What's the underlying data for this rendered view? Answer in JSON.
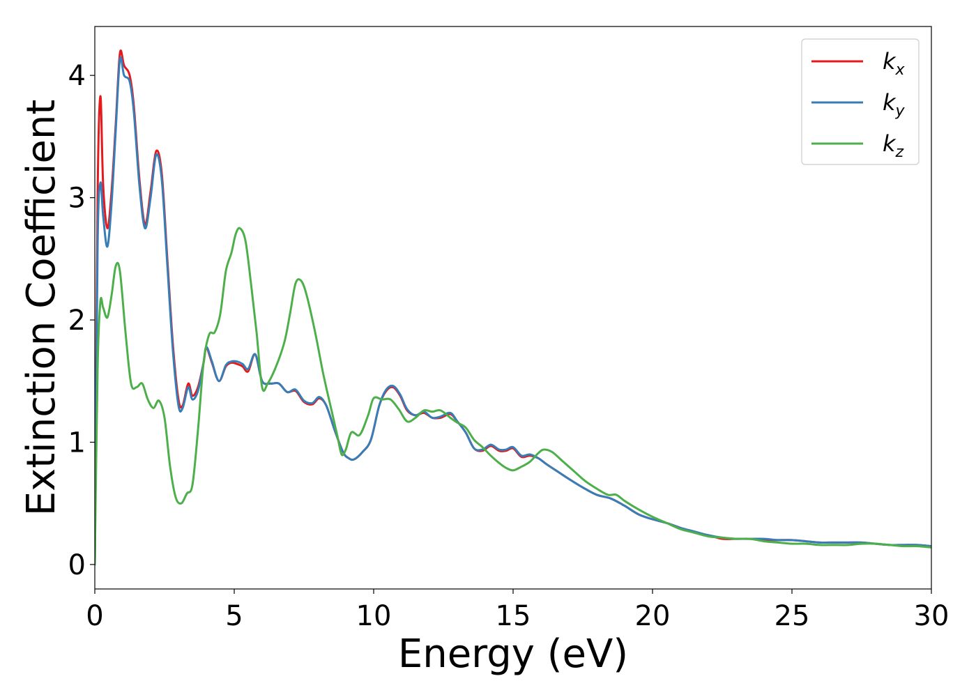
{
  "chart_data": {
    "type": "line",
    "title": "",
    "xlabel": "Energy (eV)",
    "ylabel": "Extinction Coefficient",
    "xlim": [
      0,
      30
    ],
    "ylim": [
      -0.2,
      4.4
    ],
    "xticks": [
      0,
      5,
      10,
      15,
      20,
      25,
      30
    ],
    "yticks": [
      0,
      1,
      2,
      3,
      4
    ],
    "grid": false,
    "legend_position": "top-right",
    "series": [
      {
        "name": "kx",
        "label_base": "k",
        "label_sub": "x",
        "color": "#e41a1c",
        "x": [
          0,
          0.1,
          0.2,
          0.3,
          0.45,
          0.6,
          0.75,
          0.9,
          1.05,
          1.25,
          1.4,
          1.6,
          1.8,
          2.0,
          2.2,
          2.4,
          2.6,
          2.8,
          3.0,
          3.15,
          3.35,
          3.5,
          3.7,
          3.9,
          4.0,
          4.2,
          4.45,
          4.7,
          4.9,
          5.1,
          5.3,
          5.5,
          5.75,
          6.0,
          6.3,
          6.6,
          6.9,
          7.2,
          7.5,
          7.8,
          8.05,
          8.3,
          8.6,
          8.9,
          9.1,
          9.3,
          9.6,
          9.9,
          10.2,
          10.45,
          10.7,
          10.95,
          11.2,
          11.5,
          11.8,
          12.1,
          12.4,
          12.75,
          13.0,
          13.3,
          13.6,
          13.9,
          14.2,
          14.5,
          14.75,
          15.0,
          15.3,
          15.6,
          15.9,
          16.2,
          16.6,
          17.0,
          17.5,
          18.0,
          18.5,
          19.0,
          19.5,
          20.0,
          20.5,
          21.0,
          21.5,
          22.0,
          22.5,
          23.0,
          23.5,
          24.0,
          24.5,
          25.0,
          25.5,
          26.0,
          26.5,
          27.0,
          27.5,
          28.0,
          28.5,
          29.0,
          29.5,
          30.0
        ],
        "values": [
          0.0,
          3.0,
          3.83,
          3.1,
          2.75,
          3.05,
          3.6,
          4.18,
          4.08,
          4.0,
          3.75,
          3.15,
          2.78,
          3.05,
          3.38,
          3.2,
          2.5,
          1.8,
          1.35,
          1.3,
          1.48,
          1.38,
          1.45,
          1.65,
          1.77,
          1.65,
          1.5,
          1.62,
          1.65,
          1.64,
          1.62,
          1.58,
          1.72,
          1.5,
          1.48,
          1.48,
          1.41,
          1.42,
          1.33,
          1.31,
          1.36,
          1.3,
          1.1,
          0.92,
          0.87,
          0.86,
          0.92,
          1.02,
          1.3,
          1.42,
          1.45,
          1.38,
          1.26,
          1.22,
          1.24,
          1.2,
          1.2,
          1.23,
          1.17,
          1.08,
          0.95,
          0.93,
          0.97,
          0.93,
          0.93,
          0.95,
          0.88,
          0.89,
          0.87,
          0.82,
          0.76,
          0.7,
          0.63,
          0.57,
          0.54,
          0.48,
          0.41,
          0.37,
          0.34,
          0.3,
          0.26,
          0.24,
          0.21,
          0.21,
          0.21,
          0.2,
          0.2,
          0.2,
          0.19,
          0.18,
          0.18,
          0.18,
          0.18,
          0.17,
          0.16,
          0.16,
          0.16,
          0.15
        ]
      },
      {
        "name": "ky",
        "label_base": "k",
        "label_sub": "y",
        "color": "#377eb8",
        "x": [
          0,
          0.1,
          0.2,
          0.3,
          0.45,
          0.6,
          0.75,
          0.9,
          1.05,
          1.25,
          1.4,
          1.6,
          1.8,
          2.0,
          2.2,
          2.4,
          2.6,
          2.8,
          3.0,
          3.15,
          3.35,
          3.5,
          3.7,
          3.9,
          4.0,
          4.2,
          4.45,
          4.7,
          4.9,
          5.1,
          5.3,
          5.5,
          5.75,
          6.0,
          6.3,
          6.6,
          6.9,
          7.2,
          7.5,
          7.8,
          8.05,
          8.3,
          8.6,
          8.9,
          9.1,
          9.3,
          9.6,
          9.9,
          10.2,
          10.45,
          10.7,
          10.95,
          11.2,
          11.5,
          11.8,
          12.1,
          12.4,
          12.75,
          13.0,
          13.3,
          13.6,
          13.9,
          14.2,
          14.5,
          14.75,
          15.0,
          15.3,
          15.6,
          15.9,
          16.2,
          16.6,
          17.0,
          17.5,
          18.0,
          18.5,
          19.0,
          19.5,
          20.0,
          20.5,
          21.0,
          21.5,
          22.0,
          22.5,
          23.0,
          23.5,
          24.0,
          24.5,
          25.0,
          25.5,
          26.0,
          26.5,
          27.0,
          27.5,
          28.0,
          28.5,
          29.0,
          29.5,
          30.0
        ],
        "values": [
          0.0,
          2.6,
          3.12,
          2.85,
          2.6,
          2.95,
          3.55,
          4.13,
          4.0,
          3.95,
          3.7,
          3.1,
          2.75,
          3.0,
          3.35,
          3.15,
          2.45,
          1.75,
          1.3,
          1.28,
          1.45,
          1.35,
          1.42,
          1.65,
          1.78,
          1.66,
          1.5,
          1.63,
          1.66,
          1.66,
          1.64,
          1.6,
          1.72,
          1.5,
          1.48,
          1.48,
          1.41,
          1.43,
          1.34,
          1.32,
          1.37,
          1.3,
          1.1,
          0.92,
          0.87,
          0.86,
          0.92,
          1.02,
          1.3,
          1.43,
          1.46,
          1.39,
          1.27,
          1.22,
          1.25,
          1.2,
          1.21,
          1.24,
          1.17,
          1.08,
          0.95,
          0.94,
          0.98,
          0.94,
          0.94,
          0.96,
          0.89,
          0.9,
          0.87,
          0.82,
          0.76,
          0.7,
          0.63,
          0.57,
          0.54,
          0.48,
          0.41,
          0.37,
          0.34,
          0.3,
          0.27,
          0.24,
          0.22,
          0.21,
          0.21,
          0.21,
          0.2,
          0.2,
          0.19,
          0.18,
          0.18,
          0.18,
          0.18,
          0.17,
          0.16,
          0.16,
          0.16,
          0.15
        ]
      },
      {
        "name": "kz",
        "label_base": "k",
        "label_sub": "z",
        "color": "#4daf4a",
        "x": [
          0,
          0.1,
          0.2,
          0.3,
          0.45,
          0.6,
          0.75,
          0.9,
          1.1,
          1.3,
          1.5,
          1.7,
          1.9,
          2.1,
          2.3,
          2.5,
          2.7,
          2.9,
          3.1,
          3.3,
          3.5,
          3.7,
          3.9,
          4.1,
          4.3,
          4.5,
          4.7,
          4.9,
          5.05,
          5.2,
          5.4,
          5.6,
          5.8,
          6.0,
          6.2,
          6.5,
          6.8,
          7.0,
          7.2,
          7.4,
          7.6,
          7.9,
          8.2,
          8.5,
          8.7,
          8.85,
          9.0,
          9.2,
          9.5,
          9.8,
          10.0,
          10.3,
          10.6,
          10.9,
          11.2,
          11.5,
          11.8,
          12.1,
          12.4,
          12.75,
          13.0,
          13.3,
          13.6,
          13.9,
          14.2,
          14.5,
          14.75,
          15.0,
          15.3,
          15.6,
          15.9,
          16.1,
          16.4,
          16.8,
          17.2,
          17.6,
          18.0,
          18.4,
          18.7,
          19.0,
          19.5,
          20.0,
          20.5,
          21.0,
          21.5,
          22.0,
          22.5,
          23.0,
          23.5,
          24.0,
          24.5,
          25.0,
          25.5,
          26.0,
          26.5,
          27.0,
          27.5,
          28.0,
          28.5,
          29.0,
          29.5,
          30.0
        ],
        "values": [
          0.0,
          1.6,
          2.15,
          2.1,
          2.02,
          2.2,
          2.44,
          2.4,
          1.9,
          1.48,
          1.45,
          1.48,
          1.35,
          1.28,
          1.34,
          1.2,
          0.8,
          0.55,
          0.5,
          0.58,
          0.65,
          1.1,
          1.65,
          1.88,
          1.9,
          2.05,
          2.4,
          2.55,
          2.7,
          2.75,
          2.65,
          2.3,
          1.9,
          1.45,
          1.48,
          1.62,
          1.82,
          2.05,
          2.3,
          2.32,
          2.2,
          1.9,
          1.55,
          1.25,
          1.05,
          0.9,
          0.94,
          1.08,
          1.06,
          1.22,
          1.36,
          1.35,
          1.35,
          1.27,
          1.17,
          1.2,
          1.26,
          1.25,
          1.26,
          1.2,
          1.16,
          1.12,
          1.02,
          0.96,
          0.89,
          0.83,
          0.79,
          0.77,
          0.8,
          0.84,
          0.91,
          0.94,
          0.92,
          0.84,
          0.76,
          0.68,
          0.62,
          0.57,
          0.57,
          0.52,
          0.45,
          0.39,
          0.34,
          0.29,
          0.26,
          0.23,
          0.22,
          0.21,
          0.21,
          0.19,
          0.18,
          0.17,
          0.17,
          0.16,
          0.16,
          0.16,
          0.17,
          0.17,
          0.16,
          0.15,
          0.15,
          0.14
        ]
      }
    ]
  }
}
